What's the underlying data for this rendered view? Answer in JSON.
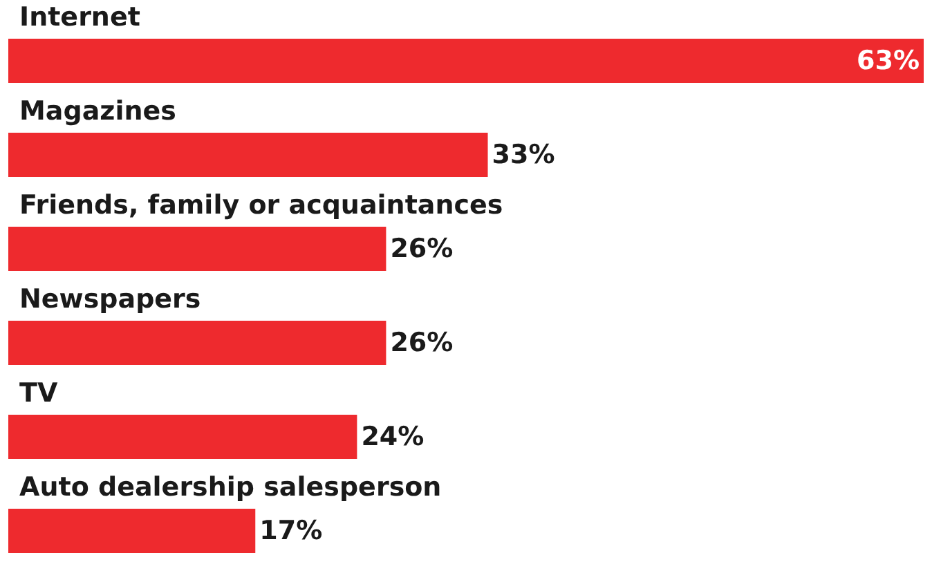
{
  "chart_data": {
    "type": "bar",
    "orientation": "horizontal",
    "categories": [
      "Internet",
      "Magazines",
      "Friends, family or acquaintances",
      "Newspapers",
      "TV",
      "Auto dealership salesperson"
    ],
    "values": [
      63,
      33,
      26,
      26,
      24,
      17
    ],
    "value_labels": [
      "63%",
      "33%",
      "26%",
      "26%",
      "24%",
      "17%"
    ],
    "color": "#ee2a2e"
  }
}
